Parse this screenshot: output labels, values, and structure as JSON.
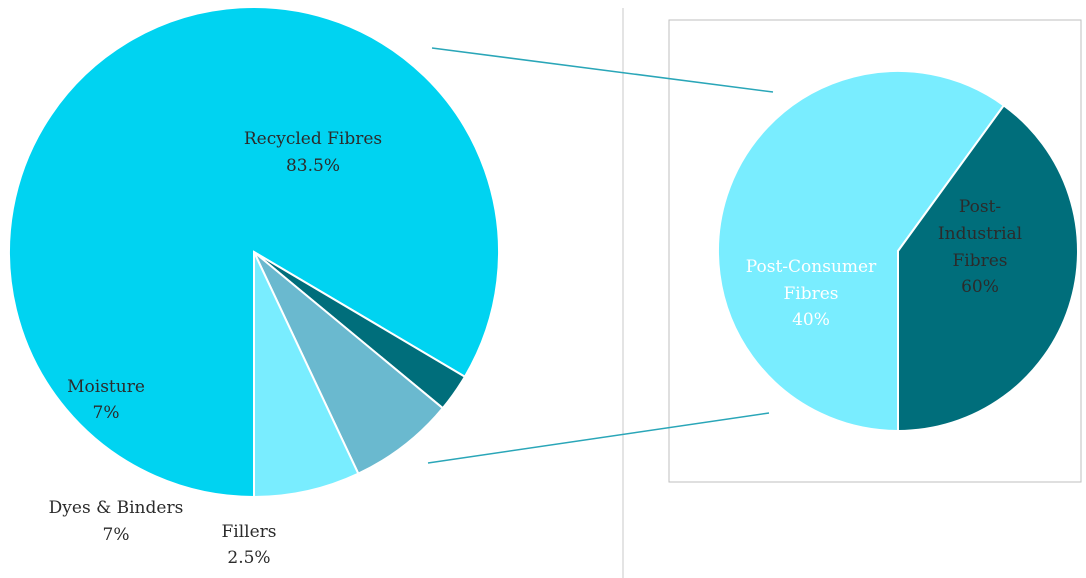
{
  "chart_data": [
    {
      "type": "pie",
      "slices": [
        {
          "name": "Recycled Fibres",
          "value_label": "83.5%",
          "value": 83.5,
          "color": "#00d3f1"
        },
        {
          "name": "Fillers",
          "value_label": "2.5%",
          "value": 2.5,
          "color": "#006e7b"
        },
        {
          "name": "Dyes & Binders",
          "value_label": "7%",
          "value": 7,
          "color": "#6ab9cf"
        },
        {
          "name": "Moisture",
          "value_label": "7%",
          "value": 7,
          "color": "#79edff"
        }
      ]
    },
    {
      "type": "pie",
      "slices": [
        {
          "name": "Post-Industrial Fibres",
          "label_lines": [
            "Post-",
            "Industrial",
            "Fibres"
          ],
          "value_label": "60%",
          "value": 60,
          "color": "#79edff"
        },
        {
          "name": "Post-Consumer Fibres",
          "label_lines": [
            "Post-Consumer",
            "Fibres"
          ],
          "value_label": "40%",
          "value": 40,
          "color": "#006e7b"
        }
      ]
    }
  ],
  "colors": {
    "connector": "#2aa6b8",
    "divider": "#c8c8c8",
    "frame": "#bfbfbf"
  }
}
